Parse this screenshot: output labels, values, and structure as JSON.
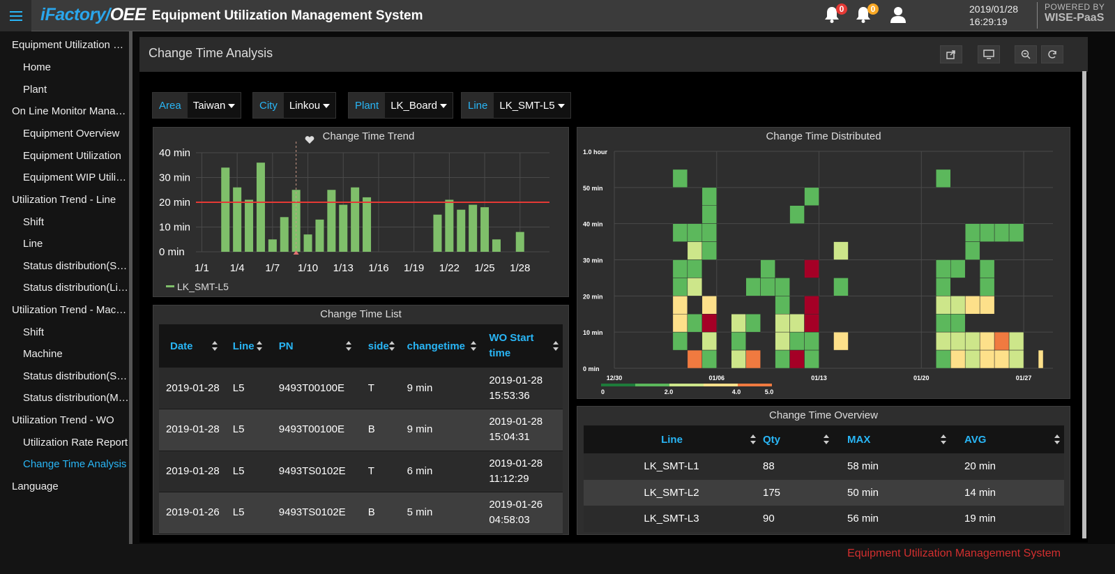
{
  "app": {
    "brand_main": "iFactory/",
    "brand_oee": "OEE",
    "title": "Equipment Utilization Management System",
    "notifications": [
      {
        "icon": "bell-icon",
        "count": "0",
        "color": "#e53935"
      },
      {
        "icon": "bell-icon",
        "count": "0",
        "color": "#f9a825"
      }
    ],
    "date": "2019/01/28",
    "time": "16:29:19",
    "powered_by": "POWERED BY",
    "powered_brand": "WISE-PaaS"
  },
  "sidebar": {
    "items": [
      {
        "label": "Equipment Utilization Management System",
        "type": "group"
      },
      {
        "label": "Home",
        "type": "item"
      },
      {
        "label": "Plant",
        "type": "item"
      },
      {
        "label": "On Line Monitor Management",
        "type": "group"
      },
      {
        "label": "Equipment Overview",
        "type": "item"
      },
      {
        "label": "Equipment Utilization",
        "type": "item"
      },
      {
        "label": "Equipment WIP Utilization",
        "type": "item"
      },
      {
        "label": "Utilization Trend - Line",
        "type": "group"
      },
      {
        "label": "Shift",
        "type": "item"
      },
      {
        "label": "Line",
        "type": "item"
      },
      {
        "label": "Status distribution(Shift)",
        "type": "item"
      },
      {
        "label": "Status distribution(Line)",
        "type": "item"
      },
      {
        "label": "Utilization Trend - Machine",
        "type": "group"
      },
      {
        "label": "Shift",
        "type": "item"
      },
      {
        "label": "Machine",
        "type": "item"
      },
      {
        "label": "Status distribution(Shift)",
        "type": "item"
      },
      {
        "label": "Status distribution(Machine)",
        "type": "item"
      },
      {
        "label": "Utilization Trend - WO",
        "type": "group"
      },
      {
        "label": "Utilization Rate Report",
        "type": "item"
      },
      {
        "label": "Change Time Analysis",
        "type": "item",
        "active": true
      },
      {
        "label": "Language",
        "type": "group"
      }
    ]
  },
  "page": {
    "title": "Change Time Analysis",
    "footer": "Equipment Utilization Management System"
  },
  "filters": [
    {
      "label": "Area",
      "value": "Taiwan"
    },
    {
      "label": "City",
      "value": "Linkou"
    },
    {
      "label": "Plant",
      "value": "LK_Board"
    },
    {
      "label": "Line",
      "value": "LK_SMT-L5"
    }
  ],
  "chart_data": [
    {
      "type": "bar",
      "title": "Change Time Trend",
      "ylim": [
        0,
        40
      ],
      "yticks": [
        "0 min",
        "10 min",
        "20 min",
        "30 min",
        "40 min"
      ],
      "xticks": [
        "1/1",
        "1/4",
        "1/7",
        "1/10",
        "1/13",
        "1/16",
        "1/19",
        "1/22",
        "1/25",
        "1/28"
      ],
      "threshold": 20,
      "threshold_color": "#e53935",
      "bar_color": "#7fbf6a",
      "series": [
        {
          "name": "LK_SMT-L5",
          "values": [
            {
              "day": 1,
              "value": 0
            },
            {
              "day": 2,
              "value": 0
            },
            {
              "day": 3,
              "value": 34
            },
            {
              "day": 4,
              "value": 26
            },
            {
              "day": 5,
              "value": 21
            },
            {
              "day": 6,
              "value": 36
            },
            {
              "day": 7,
              "value": 5
            },
            {
              "day": 8,
              "value": 14
            },
            {
              "day": 9,
              "value": 25
            },
            {
              "day": 10,
              "value": 7
            },
            {
              "day": 11,
              "value": 13
            },
            {
              "day": 12,
              "value": 25
            },
            {
              "day": 13,
              "value": 19
            },
            {
              "day": 14,
              "value": 26
            },
            {
              "day": 15,
              "value": 22
            },
            {
              "day": 16,
              "value": 0
            },
            {
              "day": 17,
              "value": 0
            },
            {
              "day": 18,
              "value": 0
            },
            {
              "day": 19,
              "value": 0
            },
            {
              "day": 20,
              "value": 0
            },
            {
              "day": 21,
              "value": 15
            },
            {
              "day": 22,
              "value": 21
            },
            {
              "day": 23,
              "value": 17
            },
            {
              "day": 24,
              "value": 19
            },
            {
              "day": 25,
              "value": 18
            },
            {
              "day": 26,
              "value": 5
            },
            {
              "day": 27,
              "value": 0
            },
            {
              "day": 28,
              "value": 8
            }
          ]
        }
      ]
    },
    {
      "type": "heatmap",
      "title": "Change Time Distributed",
      "ylabels": [
        "0 min",
        "10 min",
        "20 min",
        "30 min",
        "40 min",
        "50 min",
        "1.0 hour"
      ],
      "xlabels": [
        "12/30",
        "01/06",
        "01/13",
        "01/20",
        "01/27"
      ],
      "legend_labels": [
        "0",
        "2.0",
        "4.0",
        "5.0"
      ],
      "legend_colors": [
        "#1e7b3a",
        "#5cb85c",
        "#cde68a",
        "#fde08a",
        "#f07a40"
      ],
      "color_scale": {
        "1": "#5cb85c",
        "2": "#cde68a",
        "3": "#fde08a",
        "4": "#f07a40",
        "5": "#a50026"
      },
      "cells": [
        {
          "day": 5,
          "bin": 11,
          "level": 1
        },
        {
          "day": 5,
          "bin": 8,
          "level": 1
        },
        {
          "day": 5,
          "bin": 6,
          "level": 1
        },
        {
          "day": 5,
          "bin": 5,
          "level": 1
        },
        {
          "day": 5,
          "bin": 4,
          "level": 3
        },
        {
          "day": 5,
          "bin": 3,
          "level": 3
        },
        {
          "day": 5,
          "bin": 2,
          "level": 1
        },
        {
          "day": 6,
          "bin": 8,
          "level": 1
        },
        {
          "day": 6,
          "bin": 7,
          "level": 2
        },
        {
          "day": 6,
          "bin": 6,
          "level": 1
        },
        {
          "day": 6,
          "bin": 5,
          "level": 2
        },
        {
          "day": 6,
          "bin": 3,
          "level": 1
        },
        {
          "day": 6,
          "bin": 1,
          "level": 4
        },
        {
          "day": 7,
          "bin": 10,
          "level": 1
        },
        {
          "day": 7,
          "bin": 9,
          "level": 1
        },
        {
          "day": 7,
          "bin": 8,
          "level": 1
        },
        {
          "day": 7,
          "bin": 7,
          "level": 1
        },
        {
          "day": 7,
          "bin": 4,
          "level": 3
        },
        {
          "day": 7,
          "bin": 3,
          "level": 5
        },
        {
          "day": 7,
          "bin": 2,
          "level": 2
        },
        {
          "day": 7,
          "bin": 1,
          "level": 1
        },
        {
          "day": 9,
          "bin": 3,
          "level": 2
        },
        {
          "day": 9,
          "bin": 2,
          "level": 1
        },
        {
          "day": 9,
          "bin": 1,
          "level": 2
        },
        {
          "day": 10,
          "bin": 5,
          "level": 1
        },
        {
          "day": 10,
          "bin": 3,
          "level": 1
        },
        {
          "day": 10,
          "bin": 1,
          "level": 4
        },
        {
          "day": 11,
          "bin": 6,
          "level": 1
        },
        {
          "day": 11,
          "bin": 5,
          "level": 1
        },
        {
          "day": 12,
          "bin": 5,
          "level": 1
        },
        {
          "day": 12,
          "bin": 4,
          "level": 1
        },
        {
          "day": 12,
          "bin": 3,
          "level": 2
        },
        {
          "day": 12,
          "bin": 2,
          "level": 2
        },
        {
          "day": 12,
          "bin": 1,
          "level": 1
        },
        {
          "day": 13,
          "bin": 9,
          "level": 1
        },
        {
          "day": 13,
          "bin": 3,
          "level": 2
        },
        {
          "day": 13,
          "bin": 2,
          "level": 1
        },
        {
          "day": 13,
          "bin": 1,
          "level": 5
        },
        {
          "day": 14,
          "bin": 10,
          "level": 1
        },
        {
          "day": 14,
          "bin": 6,
          "level": 5
        },
        {
          "day": 14,
          "bin": 4,
          "level": 5
        },
        {
          "day": 14,
          "bin": 3,
          "level": 5
        },
        {
          "day": 14,
          "bin": 2,
          "level": 1
        },
        {
          "day": 14,
          "bin": 1,
          "level": 1
        },
        {
          "day": 16,
          "bin": 7,
          "level": 2
        },
        {
          "day": 16,
          "bin": 5,
          "level": 1
        },
        {
          "day": 16,
          "bin": 2,
          "level": 3
        },
        {
          "day": 23,
          "bin": 11,
          "level": 1
        },
        {
          "day": 23,
          "bin": 6,
          "level": 1
        },
        {
          "day": 23,
          "bin": 5,
          "level": 1
        },
        {
          "day": 23,
          "bin": 4,
          "level": 2
        },
        {
          "day": 23,
          "bin": 3,
          "level": 1
        },
        {
          "day": 23,
          "bin": 2,
          "level": 2
        },
        {
          "day": 23,
          "bin": 1,
          "level": 1
        },
        {
          "day": 24,
          "bin": 6,
          "level": 1
        },
        {
          "day": 24,
          "bin": 4,
          "level": 2
        },
        {
          "day": 24,
          "bin": 3,
          "level": 1
        },
        {
          "day": 24,
          "bin": 2,
          "level": 2
        },
        {
          "day": 24,
          "bin": 1,
          "level": 3
        },
        {
          "day": 25,
          "bin": 8,
          "level": 1
        },
        {
          "day": 25,
          "bin": 7,
          "level": 1
        },
        {
          "day": 25,
          "bin": 4,
          "level": 3
        },
        {
          "day": 25,
          "bin": 2,
          "level": 2
        },
        {
          "day": 25,
          "bin": 1,
          "level": 2
        },
        {
          "day": 26,
          "bin": 8,
          "level": 1
        },
        {
          "day": 26,
          "bin": 6,
          "level": 1
        },
        {
          "day": 26,
          "bin": 5,
          "level": 1
        },
        {
          "day": 26,
          "bin": 4,
          "level": 3
        },
        {
          "day": 26,
          "bin": 2,
          "level": 3
        },
        {
          "day": 26,
          "bin": 1,
          "level": 3
        },
        {
          "day": 27,
          "bin": 8,
          "level": 1
        },
        {
          "day": 27,
          "bin": 2,
          "level": 4
        },
        {
          "day": 27,
          "bin": 1,
          "level": 3
        },
        {
          "day": 28,
          "bin": 8,
          "level": 1
        },
        {
          "day": 28,
          "bin": 2,
          "level": 2
        },
        {
          "day": 28,
          "bin": 1,
          "level": 2
        },
        {
          "day": 30,
          "bin": 1,
          "level": 3
        }
      ]
    }
  ],
  "change_time_list": {
    "title": "Change Time List",
    "columns": [
      "Date",
      "Line",
      "PN",
      "side",
      "changetime",
      "WO Start time"
    ],
    "rows": [
      {
        "date": "2019-01-28",
        "line": "L5",
        "pn": "9493T00100E",
        "side": "T",
        "changetime": "9 min",
        "wo_start": "2019-01-28 15:53:36"
      },
      {
        "date": "2019-01-28",
        "line": "L5",
        "pn": "9493T00100E",
        "side": "B",
        "changetime": "9 min",
        "wo_start": "2019-01-28 15:04:31"
      },
      {
        "date": "2019-01-28",
        "line": "L5",
        "pn": "9493TS0102E",
        "side": "T",
        "changetime": "6 min",
        "wo_start": "2019-01-28 11:12:29"
      },
      {
        "date": "2019-01-26",
        "line": "L5",
        "pn": "9493TS0102E",
        "side": "B",
        "changetime": "5 min",
        "wo_start": "2019-01-26 04:58:03"
      }
    ]
  },
  "change_time_overview": {
    "title": "Change Time Overview",
    "columns": [
      "Line",
      "Qty",
      "MAX",
      "AVG"
    ],
    "rows": [
      {
        "line": "LK_SMT-L1",
        "qty": "88",
        "max": "58 min",
        "avg": "20 min"
      },
      {
        "line": "LK_SMT-L2",
        "qty": "175",
        "max": "50 min",
        "avg": "14 min"
      },
      {
        "line": "LK_SMT-L3",
        "qty": "90",
        "max": "56 min",
        "avg": "19 min"
      }
    ]
  },
  "colors": {
    "accent": "#29b6f6",
    "bg_panel": "#2e2e2e",
    "bg_page": "#000000",
    "footer_text": "#d32f2f"
  }
}
